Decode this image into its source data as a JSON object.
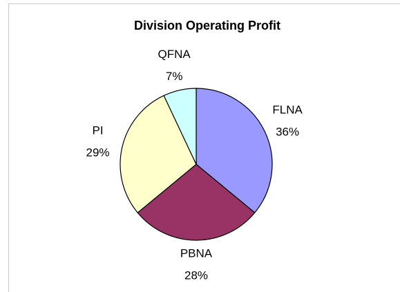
{
  "chart_data": {
    "type": "pie",
    "title": "Division Operating Profit",
    "categories": [
      "FLNA",
      "PBNA",
      "PI",
      "QFNA"
    ],
    "values": [
      36,
      28,
      29,
      7
    ],
    "value_labels": [
      "36%",
      "28%",
      "29%",
      "7%"
    ],
    "colors": [
      "#9999ff",
      "#993366",
      "#ffffcc",
      "#ccffff"
    ]
  }
}
